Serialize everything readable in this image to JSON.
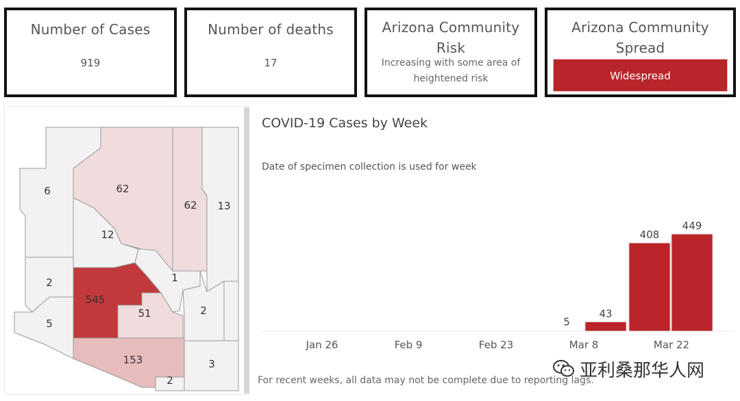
{
  "cards": {
    "cases": {
      "title": "Number of Cases",
      "value": "919"
    },
    "deaths": {
      "title": "Number of deaths",
      "value": "17"
    },
    "risk": {
      "title": "Arizona Community Risk",
      "description": "Increasing with some area of heightened risk"
    },
    "spread": {
      "title": "Arizona Community Spread",
      "status": "Widespread"
    }
  },
  "map": {
    "counties": [
      {
        "name": "mohave",
        "label": "6",
        "value": 6
      },
      {
        "name": "coconino",
        "label": "62",
        "value": 62
      },
      {
        "name": "navajo",
        "label": "62",
        "value": 62
      },
      {
        "name": "apache",
        "label": "13",
        "value": 13
      },
      {
        "name": "yavapai",
        "label": "12",
        "value": 12
      },
      {
        "name": "la-paz",
        "label": "2",
        "value": 2
      },
      {
        "name": "maricopa",
        "label": "545",
        "value": 545
      },
      {
        "name": "gila",
        "label": "1",
        "value": 1
      },
      {
        "name": "pinal",
        "label": "51",
        "value": 51
      },
      {
        "name": "yuma",
        "label": "5",
        "value": 5
      },
      {
        "name": "graham",
        "label": "2",
        "value": 2
      },
      {
        "name": "pima",
        "label": "153",
        "value": 153
      },
      {
        "name": "santa-cruz",
        "label": "2",
        "value": 2
      },
      {
        "name": "cochise",
        "label": "3",
        "value": 3
      },
      {
        "name": "greenlee",
        "label": "",
        "value": 0
      }
    ]
  },
  "chart": {
    "title": "COVID-19 Cases by Week",
    "subtitle": "Date of specimen collection is used for week",
    "footnote": "For recent weeks, all data may not be complete due to reporting lags."
  },
  "chart_data": {
    "type": "bar",
    "title": "COVID-19 Cases by Week",
    "subtitle": "Date of specimen collection is used for week",
    "xlabel": "",
    "ylabel": "",
    "tick_labels": [
      "Jan 26",
      "Feb 9",
      "Feb 23",
      "Mar 8",
      "Mar 22"
    ],
    "bars": [
      {
        "category": "Mar 8",
        "value": 5,
        "label": "5"
      },
      {
        "category": "Mar 15",
        "value": 43,
        "label": "43"
      },
      {
        "category": "Mar 22",
        "value": 408,
        "label": "408"
      },
      {
        "category": "Mar 29",
        "value": 449,
        "label": "449"
      }
    ],
    "ylim": [
      0,
      500
    ],
    "grid": false,
    "bar_color": "#b92529"
  },
  "watermark": {
    "text": "亚利桑那华人网"
  },
  "colors": {
    "accent": "#b92529",
    "map_low": "#f2f2f2",
    "map_mid": "#e8c9ca",
    "map_high": "#c0393b"
  }
}
